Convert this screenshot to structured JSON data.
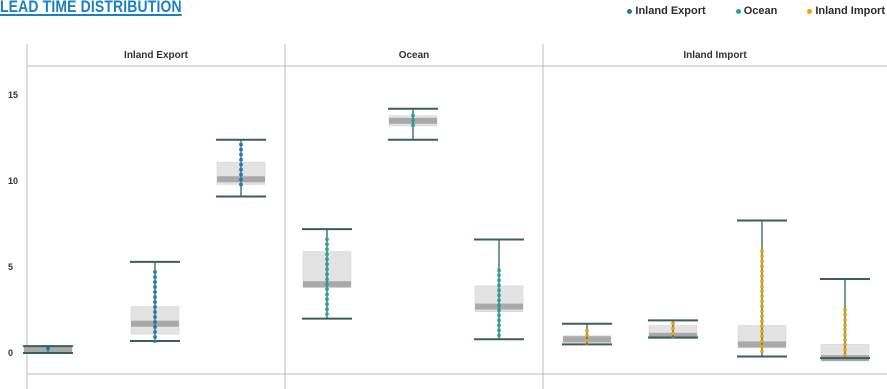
{
  "title": "LEAD TIME DISTRIBUTION",
  "legend": [
    {
      "label": "Inland Export",
      "color": "#1f77b4"
    },
    {
      "label": "Ocean",
      "color": "#2aa198"
    },
    {
      "label": "Inland Import",
      "color": "#f0a30a"
    }
  ],
  "chart_data": {
    "type": "boxplot",
    "title": "LEAD TIME DISTRIBUTION",
    "ylim": [
      -1,
      16.5
    ],
    "yticks": [
      0,
      5,
      10,
      15
    ],
    "grid": false,
    "legend_position": "top-right",
    "panels": [
      {
        "name": "Inland Export",
        "color": "#1f77b4",
        "boxes": [
          {
            "min": 0.0,
            "q1": 0.1,
            "median": 0.2,
            "q3": 0.35,
            "max": 0.4,
            "jitter": [
              0.05,
              0.35
            ]
          },
          {
            "min": 0.7,
            "q1": 1.1,
            "median": 1.7,
            "q3": 2.7,
            "max": 5.3,
            "jitter": [
              0.6,
              4.8
            ]
          },
          {
            "min": 9.1,
            "q1": 9.8,
            "median": 10.1,
            "q3": 11.1,
            "max": 12.4,
            "jitter": [
              9.6,
              12.2
            ]
          }
        ]
      },
      {
        "name": "Ocean",
        "color": "#2aa198",
        "boxes": [
          {
            "min": 2.0,
            "q1": 3.8,
            "median": 4.0,
            "q3": 5.9,
            "max": 7.2,
            "jitter": [
              2.2,
              6.7
            ]
          },
          {
            "min": 12.4,
            "q1": 13.2,
            "median": 13.5,
            "q3": 13.8,
            "max": 14.2,
            "jitter": [
              13.1,
              13.9
            ]
          },
          {
            "min": 0.8,
            "q1": 2.4,
            "median": 2.7,
            "q3": 3.9,
            "max": 6.6,
            "jitter": [
              0.9,
              4.9
            ]
          }
        ]
      },
      {
        "name": "Inland Import",
        "color": "#f0a30a",
        "boxes": [
          {
            "min": 0.5,
            "q1": 0.6,
            "median": 0.8,
            "q3": 1.0,
            "max": 1.7,
            "jitter": [
              0.5,
              1.4
            ]
          },
          {
            "min": 0.9,
            "q1": 0.9,
            "median": 1.0,
            "q3": 1.6,
            "max": 1.9,
            "jitter": [
              0.9,
              1.8
            ]
          },
          {
            "min": -0.2,
            "q1": 0.3,
            "median": 0.5,
            "q3": 1.6,
            "max": 7.7,
            "jitter": [
              -0.1,
              6.0
            ]
          },
          {
            "min": -0.3,
            "q1": -0.3,
            "median": -0.3,
            "q3": 0.5,
            "max": 4.3,
            "jitter": [
              -0.2,
              2.6
            ]
          }
        ]
      }
    ]
  }
}
